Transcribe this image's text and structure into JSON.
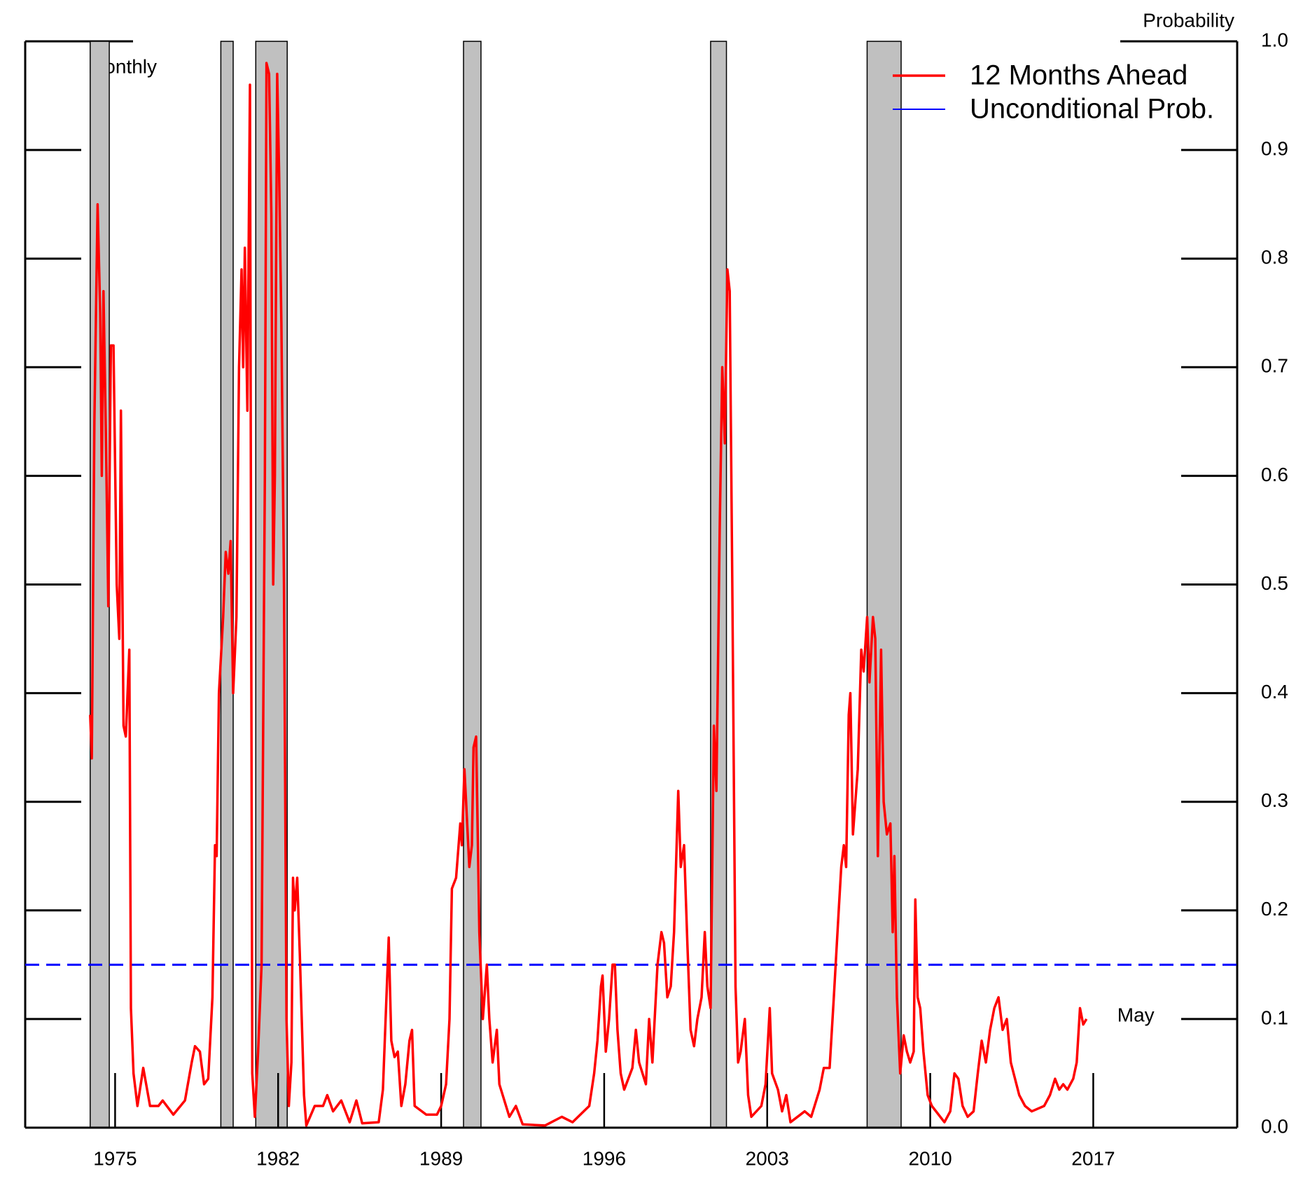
{
  "chart_data": {
    "type": "line",
    "annotations": {
      "frequency": "Monthly",
      "axis_title": "Probability",
      "last_label": "May"
    },
    "xlim": [
      1971.14,
      2023.18
    ],
    "xticks": [
      1975,
      1982,
      1989,
      1996,
      2003,
      2010,
      2017
    ],
    "ylim": [
      0,
      1
    ],
    "yticks": [
      {
        "value": 0,
        "label": "0.0"
      },
      0.1,
      0.2,
      0.3,
      0.4,
      0.5,
      0.6,
      0.7,
      0.8,
      0.9,
      {
        "value": 1,
        "label": "1.0"
      }
    ],
    "recessions": [
      [
        1973.93,
        1974.75
      ],
      [
        1979.54,
        1980.07
      ],
      [
        1981.04,
        1982.39
      ],
      [
        1989.96,
        1990.71
      ],
      [
        2000.57,
        2001.25
      ],
      [
        2007.29,
        2008.75
      ]
    ],
    "recession_color": "#c0c0c0",
    "reference_lines": [
      {
        "name": "Unconditional Prob.",
        "color": "#0000ff",
        "value": 0.15
      }
    ],
    "series": [
      {
        "name": "12 Months Ahead",
        "color": "#ff0000",
        "x": [
          1973.93,
          1974.0,
          1974.11,
          1974.25,
          1974.36,
          1974.43,
          1974.5,
          1974.61,
          1974.71,
          1974.82,
          1974.93,
          1975.07,
          1975.18,
          1975.25,
          1975.36,
          1975.46,
          1975.61,
          1975.68,
          1975.79,
          1975.96,
          1976.21,
          1976.5,
          1976.86,
          1977.04,
          1977.5,
          1978.0,
          1978.29,
          1978.43,
          1978.64,
          1978.82,
          1979.0,
          1979.18,
          1979.29,
          1979.36,
          1979.46,
          1979.64,
          1979.75,
          1979.86,
          1979.96,
          1980.07,
          1980.21,
          1980.32,
          1980.43,
          1980.5,
          1980.57,
          1980.68,
          1980.79,
          1980.89,
          1981.0,
          1981.14,
          1981.29,
          1981.43,
          1981.5,
          1981.61,
          1981.71,
          1981.79,
          1981.86,
          1981.96,
          1982.04,
          1982.14,
          1982.25,
          1982.36,
          1982.46,
          1982.57,
          1982.64,
          1982.71,
          1982.82,
          1982.93,
          1983.11,
          1983.21,
          1983.57,
          1983.93,
          1984.11,
          1984.36,
          1984.71,
          1985.07,
          1985.36,
          1985.61,
          1986.32,
          1986.5,
          1986.75,
          1986.86,
          1987.0,
          1987.14,
          1987.29,
          1987.46,
          1987.64,
          1987.75,
          1987.86,
          1988.36,
          1988.82,
          1989.0,
          1989.21,
          1989.36,
          1989.46,
          1989.64,
          1989.82,
          1989.89,
          1990.0,
          1990.07,
          1990.21,
          1990.32,
          1990.39,
          1990.5,
          1990.64,
          1990.79,
          1990.96,
          1991.07,
          1991.21,
          1991.39,
          1991.5,
          1991.93,
          1992.21,
          1992.5,
          1993.46,
          1994.18,
          1994.64,
          1995.36,
          1995.57,
          1995.71,
          1995.86,
          1995.93,
          1996.07,
          1996.21,
          1996.36,
          1996.46,
          1996.57,
          1996.71,
          1996.86,
          1997.21,
          1997.36,
          1997.5,
          1997.79,
          1997.93,
          1998.07,
          1998.29,
          1998.46,
          1998.57,
          1998.71,
          1998.86,
          1999.0,
          1999.18,
          1999.29,
          1999.43,
          1999.57,
          1999.71,
          1999.86,
          2000.0,
          2000.18,
          2000.32,
          2000.43,
          2000.57,
          2000.71,
          2000.82,
          2000.96,
          2001.07,
          2001.18,
          2001.29,
          2001.39,
          2001.5,
          2001.64,
          2001.75,
          2001.86,
          2002.04,
          2002.18,
          2002.32,
          2002.75,
          2002.93,
          2003.11,
          2003.21,
          2003.46,
          2003.64,
          2003.82,
          2004.0,
          2004.61,
          2004.89,
          2005.25,
          2005.43,
          2005.68,
          2005.86,
          2006.07,
          2006.18,
          2006.29,
          2006.39,
          2006.5,
          2006.57,
          2006.68,
          2006.89,
          2007.04,
          2007.14,
          2007.29,
          2007.39,
          2007.54,
          2007.64,
          2007.75,
          2007.89,
          2008.0,
          2008.14,
          2008.29,
          2008.39,
          2008.46,
          2008.57,
          2008.71,
          2008.86,
          2009.0,
          2009.14,
          2009.29,
          2009.36,
          2009.46,
          2009.57,
          2009.71,
          2009.89,
          2010.07,
          2010.61,
          2010.86,
          2011.04,
          2011.21,
          2011.39,
          2011.61,
          2011.86,
          2012.04,
          2012.21,
          2012.39,
          2012.57,
          2012.75,
          2012.93,
          2013.11,
          2013.29,
          2013.46,
          2013.64,
          2013.82,
          2014.07,
          2014.36,
          2014.89,
          2015.14,
          2015.36,
          2015.54,
          2015.71,
          2015.89,
          2016.14,
          2016.29,
          2016.43,
          2016.57,
          2016.71
        ],
        "values": [
          0.38,
          0.34,
          0.65,
          0.85,
          0.75,
          0.6,
          0.77,
          0.63,
          0.48,
          0.72,
          0.72,
          0.5,
          0.45,
          0.66,
          0.37,
          0.36,
          0.44,
          0.11,
          0.05,
          0.02,
          0.055,
          0.02,
          0.02,
          0.025,
          0.012,
          0.025,
          0.06,
          0.075,
          0.07,
          0.04,
          0.045,
          0.12,
          0.26,
          0.25,
          0.4,
          0.47,
          0.53,
          0.51,
          0.54,
          0.4,
          0.47,
          0.7,
          0.79,
          0.7,
          0.81,
          0.66,
          0.96,
          0.05,
          0.01,
          0.07,
          0.15,
          0.6,
          0.98,
          0.97,
          0.84,
          0.5,
          0.6,
          0.97,
          0.88,
          0.74,
          0.5,
          0.1,
          0.02,
          0.06,
          0.23,
          0.2,
          0.23,
          0.16,
          0.03,
          0.002,
          0.02,
          0.02,
          0.03,
          0.015,
          0.025,
          0.005,
          0.025,
          0.004,
          0.005,
          0.035,
          0.175,
          0.08,
          0.065,
          0.07,
          0.02,
          0.04,
          0.08,
          0.09,
          0.02,
          0.012,
          0.012,
          0.02,
          0.04,
          0.1,
          0.22,
          0.23,
          0.28,
          0.26,
          0.33,
          0.3,
          0.24,
          0.26,
          0.35,
          0.36,
          0.18,
          0.1,
          0.15,
          0.1,
          0.06,
          0.09,
          0.04,
          0.01,
          0.02,
          0.003,
          0.002,
          0.01,
          0.005,
          0.02,
          0.05,
          0.08,
          0.13,
          0.14,
          0.07,
          0.1,
          0.15,
          0.15,
          0.09,
          0.05,
          0.035,
          0.055,
          0.09,
          0.06,
          0.04,
          0.1,
          0.06,
          0.15,
          0.18,
          0.17,
          0.12,
          0.13,
          0.18,
          0.31,
          0.24,
          0.26,
          0.17,
          0.09,
          0.075,
          0.1,
          0.12,
          0.18,
          0.13,
          0.11,
          0.37,
          0.31,
          0.55,
          0.7,
          0.63,
          0.79,
          0.77,
          0.5,
          0.13,
          0.06,
          0.07,
          0.1,
          0.03,
          0.01,
          0.02,
          0.04,
          0.11,
          0.05,
          0.035,
          0.015,
          0.03,
          0.005,
          0.015,
          0.01,
          0.035,
          0.055,
          0.055,
          0.12,
          0.2,
          0.24,
          0.26,
          0.24,
          0.38,
          0.4,
          0.27,
          0.33,
          0.44,
          0.42,
          0.47,
          0.41,
          0.47,
          0.45,
          0.25,
          0.44,
          0.3,
          0.27,
          0.28,
          0.18,
          0.25,
          0.12,
          0.05,
          0.085,
          0.07,
          0.06,
          0.07,
          0.21,
          0.12,
          0.11,
          0.07,
          0.03,
          0.02,
          0.005,
          0.015,
          0.05,
          0.045,
          0.02,
          0.01,
          0.015,
          0.05,
          0.08,
          0.06,
          0.09,
          0.11,
          0.12,
          0.09,
          0.1,
          0.06,
          0.045,
          0.03,
          0.02,
          0.015,
          0.02,
          0.03,
          0.045,
          0.035,
          0.04,
          0.035,
          0.045,
          0.06,
          0.11,
          0.095,
          0.1
        ]
      }
    ]
  }
}
